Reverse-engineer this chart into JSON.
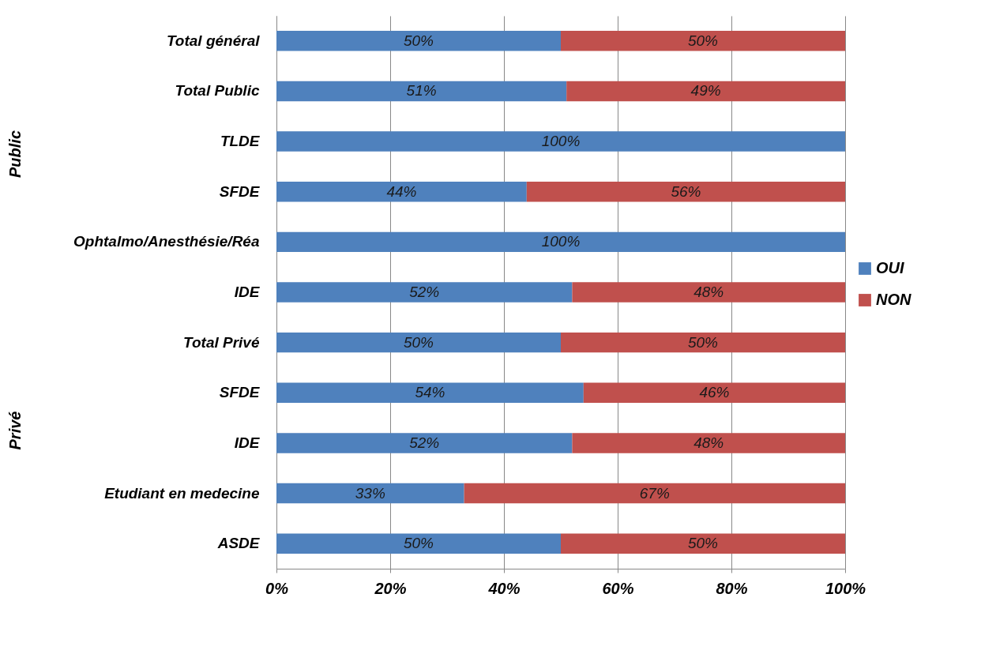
{
  "chart_data": {
    "type": "bar",
    "orientation": "horizontal",
    "stacked": true,
    "categories": [
      "Total général",
      "Total Public",
      "TLDE",
      "SFDE",
      "Ophtalmo/Anesthésie/Réa",
      "IDE",
      "Total Privé",
      "SFDE",
      "IDE",
      "Etudiant en medecine",
      "ASDE"
    ],
    "series": [
      {
        "name": "OUI",
        "color": "#4f81bd",
        "values": [
          50,
          51,
          100,
          44,
          100,
          52,
          50,
          54,
          52,
          33,
          50
        ],
        "value_labels": [
          "50%",
          "51%",
          "100%",
          "44%",
          "100%",
          "52%",
          "50%",
          "54%",
          "52%",
          "33%",
          "50%"
        ]
      },
      {
        "name": "NON",
        "color": "#c0504d",
        "values": [
          50,
          49,
          null,
          56,
          null,
          48,
          50,
          46,
          48,
          67,
          50
        ],
        "value_labels": [
          "50%",
          "49%",
          null,
          "56%",
          null,
          "48%",
          "50%",
          "46%",
          "48%",
          "67%",
          "50%"
        ]
      }
    ],
    "xlim": [
      0,
      100
    ],
    "xticks": [
      {
        "value": 0,
        "label": "0%"
      },
      {
        "value": 20,
        "label": "20%"
      },
      {
        "value": 40,
        "label": "40%"
      },
      {
        "value": 60,
        "label": "60%"
      },
      {
        "value": 80,
        "label": "80%"
      },
      {
        "value": 100,
        "label": "100%"
      }
    ],
    "annotations": [
      "Public",
      "Privé"
    ],
    "grid": "x",
    "legend": "right"
  }
}
